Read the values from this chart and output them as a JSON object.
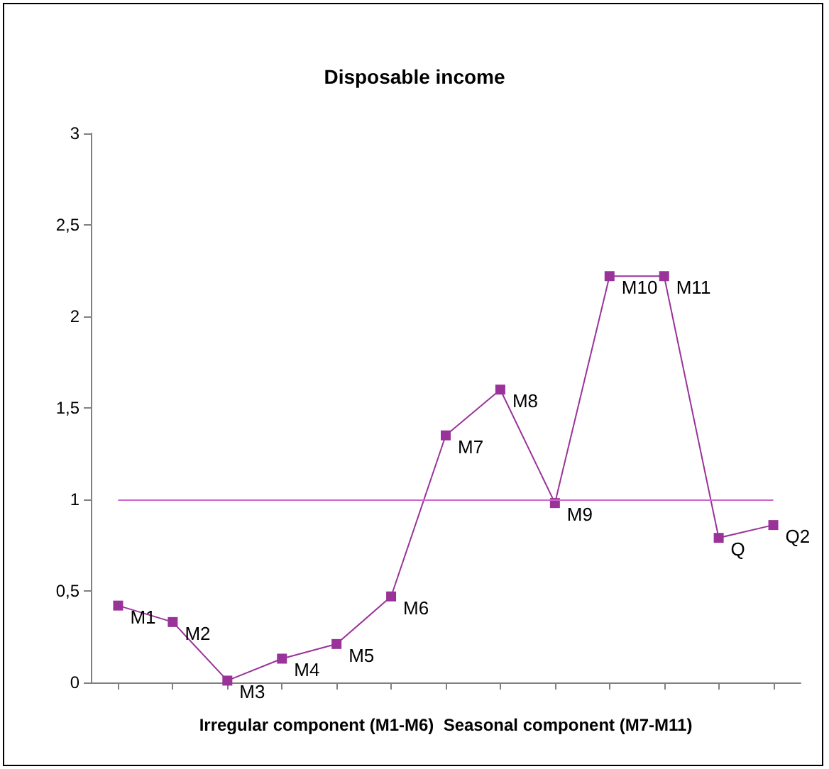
{
  "chart_data": {
    "type": "line",
    "title": "Disposable income",
    "xlabel": "Irregular component (M1-M6)  Seasonal component (M7-M11)",
    "categories": [
      null,
      null,
      null,
      null,
      null,
      null,
      null,
      null,
      null,
      null,
      null,
      null,
      null
    ],
    "series": [
      {
        "color": "#993399",
        "values": [
          0.42,
          0.33,
          0.01,
          0.13,
          0.21,
          0.47,
          1.35,
          1.6,
          0.98,
          2.22,
          2.22,
          0.79,
          0.86
        ],
        "value_labels": [
          "M1",
          "M2",
          "M3",
          "M4",
          "M5",
          "M6",
          "M7",
          "M8",
          "M9",
          "M10",
          "M11",
          "Q",
          "Q2"
        ]
      }
    ],
    "marker": "square",
    "tick_labels": "y",
    "grid": false,
    "ylim": [
      0,
      3
    ],
    "yticks": [
      0,
      {
        "value": 0.5,
        "label": "0,5"
      },
      1,
      {
        "value": 1.5,
        "label": "1,5"
      },
      2,
      {
        "value": 2.5,
        "label": "2,5"
      },
      3
    ],
    "ref_lines": [
      {
        "axis": "y",
        "value": 1,
        "color": "#cc66cc"
      }
    ]
  }
}
